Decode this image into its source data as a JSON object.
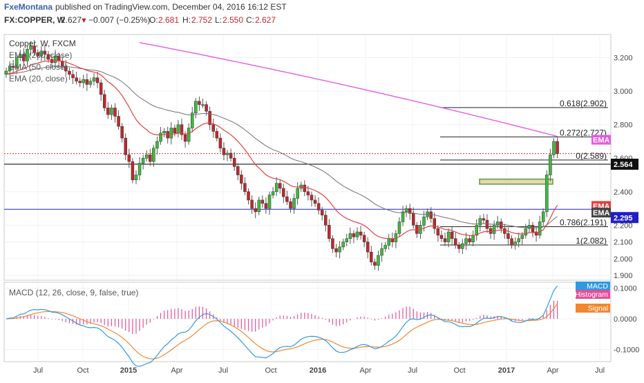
{
  "header": {
    "author": "FxeMontana",
    "published": "published on TradingView.com, December 04, 2016 16:12 EST",
    "symbol": "FX:COPPER, W",
    "last": "2.627",
    "change": "−0.007 (−0.25%)",
    "o_label": "O:",
    "o_value": "2.681",
    "h_label": "H:",
    "h_value": "2.752",
    "l_label": "L:",
    "l_value": "2.550",
    "c_label": "C:",
    "c_value": "2.627"
  },
  "legend": {
    "instrument": "Copper, W, FXCM",
    "ema200": "EMA (200, close)",
    "ema50": "EMA (50, close)",
    "ema20": "EMA (20, close)",
    "macd": "MACD (12, 26, close, 9, false, true)"
  },
  "colors": {
    "up": "#3dba3d",
    "down": "#c0272d",
    "ema200": "#e45be0",
    "ema50": "#707070",
    "ema20": "#e04040",
    "macd": "#2f9ae0",
    "signal": "#f08830",
    "hist": "#e0509a",
    "hline": "#1f1fc8",
    "red": "#d42a2a"
  },
  "chart_data": [
    {
      "type": "candlestick",
      "title": "Copper, W, FXCM",
      "yticks": [
        "3.200",
        "3.000",
        "2.800",
        "2.600",
        "2.400",
        "2.200",
        "2.100",
        "2.000",
        "1.900"
      ],
      "ylim": [
        1.88,
        3.33
      ],
      "xticks": [
        "Jul",
        "Oct",
        "2015",
        "Apr",
        "Jul",
        "Oct",
        "2016",
        "Apr",
        "Jul",
        "Oct",
        "2017",
        "Apr",
        "Jul"
      ],
      "price_labels": {
        "last": "2.564",
        "level": "2.295",
        "ema_tag": "EMA"
      },
      "levels": {
        "red_dotted": 2.627,
        "black_solid": 2.564,
        "blue_solid": 2.295
      },
      "fibonacci": [
        {
          "label": "0.618(2.902)",
          "value": 2.902
        },
        {
          "label": "0.272(2.727)",
          "value": 2.727
        },
        {
          "label": "0(2.589)",
          "value": 2.589
        },
        {
          "label": "0.786(2.191)",
          "value": 2.191
        },
        {
          "label": "1(2.082)",
          "value": 2.082
        }
      ],
      "zone": [
        2.445,
        2.475
      ],
      "closes": [
        3.12,
        3.15,
        3.14,
        3.2,
        3.22,
        3.18,
        3.25,
        3.27,
        3.23,
        3.21,
        3.24,
        3.22,
        3.19,
        3.17,
        3.21,
        3.18,
        3.15,
        3.12,
        3.1,
        3.08,
        3.06,
        3.05,
        3.07,
        3.04,
        3.06,
        3.08,
        3.05,
        2.98,
        2.9,
        2.86,
        2.9,
        2.85,
        2.79,
        2.72,
        2.62,
        2.58,
        2.47,
        2.5,
        2.57,
        2.6,
        2.62,
        2.58,
        2.66,
        2.7,
        2.75,
        2.76,
        2.72,
        2.78,
        2.75,
        2.8,
        2.74,
        2.7,
        2.78,
        2.87,
        2.94,
        2.92,
        2.92,
        2.88,
        2.8,
        2.76,
        2.72,
        2.66,
        2.62,
        2.63,
        2.6,
        2.55,
        2.5,
        2.45,
        2.4,
        2.35,
        2.3,
        2.28,
        2.35,
        2.33,
        2.3,
        2.38,
        2.4,
        2.45,
        2.42,
        2.37,
        2.34,
        2.3,
        2.36,
        2.42,
        2.44,
        2.4,
        2.38,
        2.35,
        2.33,
        2.29,
        2.26,
        2.2,
        2.12,
        2.06,
        2.04,
        2.07,
        2.1,
        2.12,
        2.15,
        2.13,
        2.16,
        2.14,
        2.1,
        2.04,
        1.98,
        1.96,
        2.02,
        2.06,
        2.08,
        2.12,
        2.1,
        2.15,
        2.22,
        2.28,
        2.3,
        2.27,
        2.2,
        2.15,
        2.2,
        2.25,
        2.28,
        2.24,
        2.18,
        2.14,
        2.12,
        2.1,
        2.16,
        2.12,
        2.08,
        2.06,
        2.09,
        2.12,
        2.1,
        2.14,
        2.2,
        2.24,
        2.23,
        2.18,
        2.15,
        2.2,
        2.22,
        2.18,
        2.15,
        2.12,
        2.08,
        2.1,
        2.12,
        2.14,
        2.18,
        2.2,
        2.16,
        2.14,
        2.22,
        2.28,
        2.5,
        2.62,
        2.7,
        2.627
      ],
      "ema200": {
        "start_index": 38,
        "start_value": 3.29,
        "end_value": 2.73
      },
      "ema_start": 3.1
    },
    {
      "type": "line",
      "title": "MACD (12, 26, close, 9, false, true)",
      "yticks": [
        "0.1000",
        "0.0000",
        "-0.1000"
      ],
      "ylim": [
        -0.135,
        0.115
      ],
      "series_labels": [
        "MACD",
        "Histogram",
        "Signal"
      ]
    }
  ]
}
